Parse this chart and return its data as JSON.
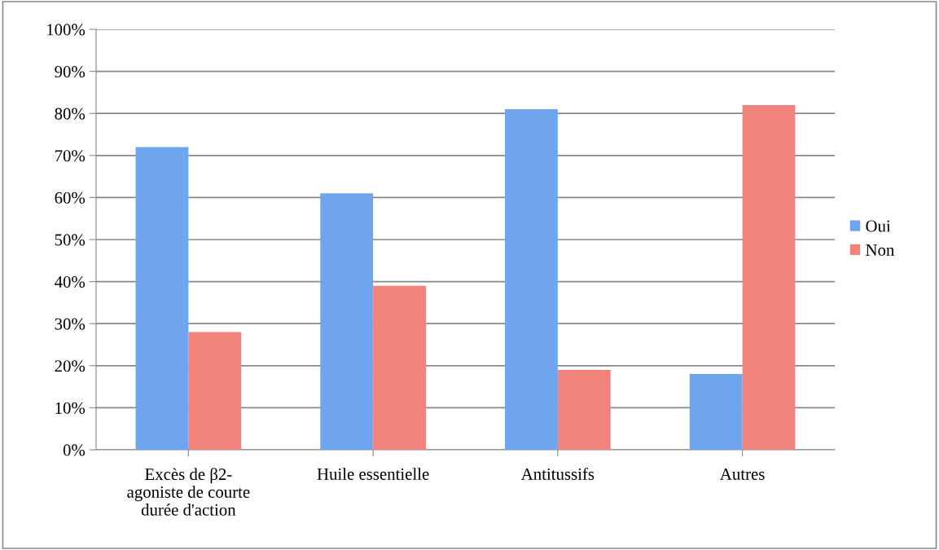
{
  "chart_data": {
    "type": "bar",
    "categories": [
      "Excès de β2-\nagoniste de courte\ndurée d'action",
      "Huile essentielle",
      "Antitussifs",
      "Autres"
    ],
    "series": [
      {
        "name": "Oui",
        "color": "#6fa4ef",
        "values": [
          72,
          61,
          81,
          18
        ]
      },
      {
        "name": "Non",
        "color": "#f0837c",
        "values": [
          28,
          39,
          19,
          82
        ]
      }
    ],
    "ylim": [
      0,
      100
    ],
    "yticks": [
      {
        "value": 0,
        "label": "0%"
      },
      {
        "value": 10,
        "label": "10%"
      },
      {
        "value": 20,
        "label": "20%"
      },
      {
        "value": 30,
        "label": "30%"
      },
      {
        "value": 40,
        "label": "40%"
      },
      {
        "value": 50,
        "label": "50%"
      },
      {
        "value": 60,
        "label": "60%"
      },
      {
        "value": 70,
        "label": "70%"
      },
      {
        "value": 80,
        "label": "80%"
      },
      {
        "value": 90,
        "label": "90%"
      },
      {
        "value": 100,
        "label": "100%"
      }
    ],
    "grid": "y",
    "legend": "right"
  }
}
